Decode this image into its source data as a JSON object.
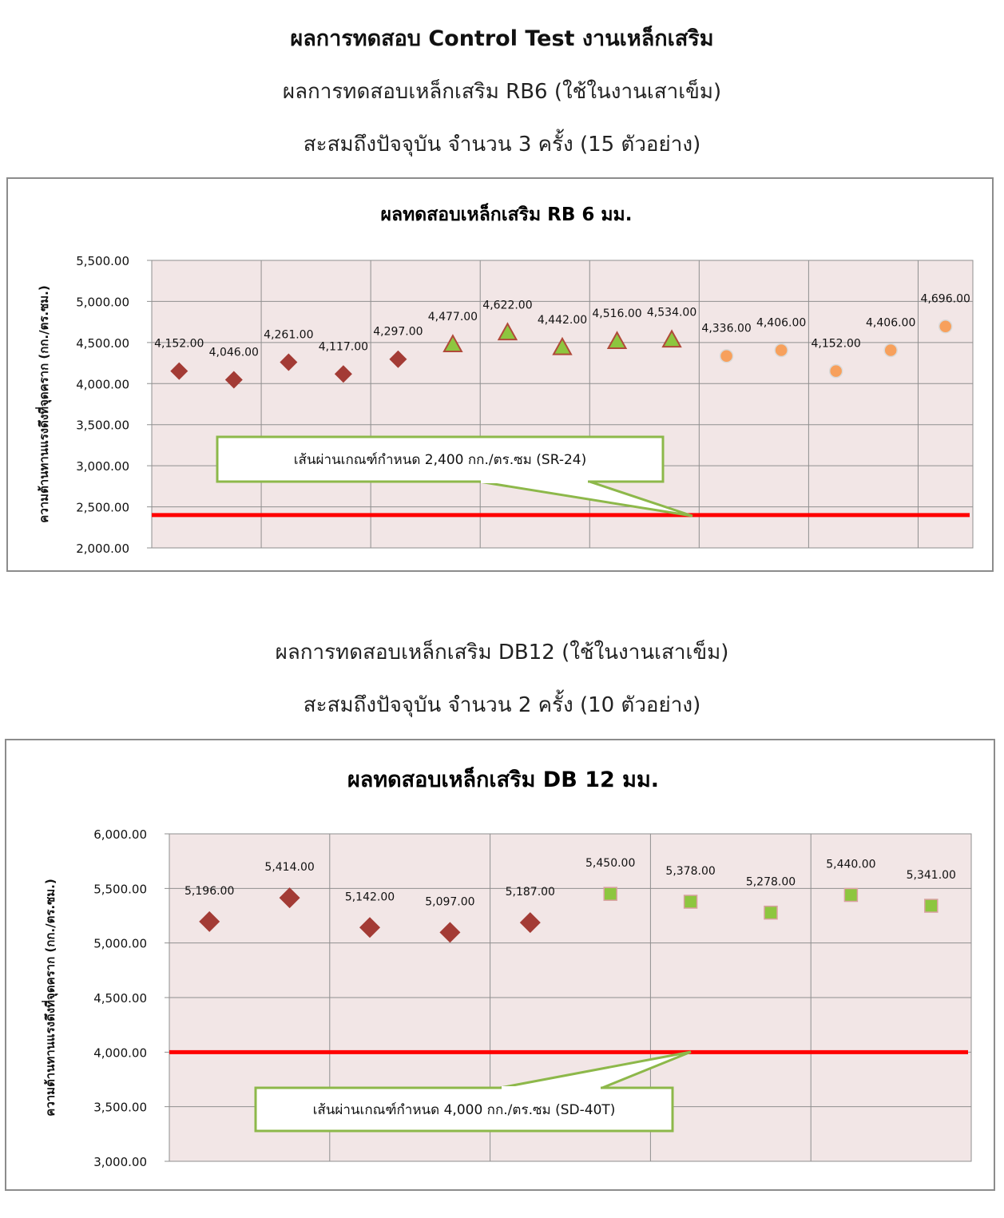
{
  "page": {
    "title": "ผลการทดสอบ Control Test งานเหล็กเสริม",
    "section1_line1": "ผลการทดสอบเหล็กเสริม RB6 (ใช้ในงานเสาเข็ม)",
    "section1_line2": "สะสมถึงปัจจุบัน จำนวน 3 ครั้ง (15 ตัวอย่าง)",
    "section2_line1": "ผลการทดสอบเหล็กเสริม DB12 (ใช้ในงานเสาเข็ม)",
    "section2_line2": "สะสมถึงปัจจุบัน จำนวน 2 ครั้ง (10 ตัวอย่าง)"
  },
  "colors": {
    "plot_bg": "#f2e6e6",
    "grid": "#8f8f8f",
    "threshold": "#ff0000",
    "diamond": "#a33b35",
    "triangle_fill": "#8dc63f",
    "triangle_stroke": "#b04a3a",
    "circle_fill": "#f7a05c",
    "circle_stroke": "#d9d9d9",
    "square_fill": "#8dc63f",
    "square_stroke": "#d9a0a0",
    "callout_border": "#8db84a"
  },
  "chart_data": [
    {
      "type": "scatter",
      "title": "ผลทดสอบเหล็กเสริม RB 6 มม.",
      "ylabel": "ความต้านทานแรงดึงที่จุดคราก (กก./ตร.ซม.)",
      "ylim": [
        2000,
        5500
      ],
      "ytick_step": 500,
      "ytick_labels": [
        "2,000.00",
        "2,500.00",
        "3,000.00",
        "3,500.00",
        "4,000.00",
        "4,500.00",
        "5,000.00",
        "5,500.00"
      ],
      "grid": true,
      "threshold": {
        "value": 2400,
        "label": "เส้นผ่านเกณฑ์กำหนด 2,400 กก./ตร.ซม (SR-24)"
      },
      "series": [
        {
          "marker": "diamond",
          "x": [
            1,
            2,
            3,
            4,
            5
          ],
          "values": [
            4152,
            4046,
            4261,
            4117,
            4297
          ],
          "labels": [
            "4,152.00",
            "4,046.00",
            "4,261.00",
            "4,117.00",
            "4,297.00"
          ]
        },
        {
          "marker": "triangle",
          "x": [
            6,
            7,
            8,
            9,
            10
          ],
          "values": [
            4477,
            4622,
            4442,
            4516,
            4534
          ],
          "labels": [
            "4,477.00",
            "4,622.00",
            "4,442.00",
            "4,516.00",
            "4,534.00"
          ]
        },
        {
          "marker": "circle",
          "x": [
            11,
            12,
            13,
            14,
            15
          ],
          "values": [
            4336,
            4406,
            4152,
            4406,
            4696
          ],
          "labels": [
            "4,336.00",
            "4,406.00",
            "4,152.00",
            "4,406.00",
            "4,696.00"
          ]
        }
      ]
    },
    {
      "type": "scatter",
      "title": "ผลทดสอบเหล็กเสริม DB 12 มม.",
      "ylabel": "ความต้านทานแรงดึงที่จุดคราก (กก./ตร.ซม.)",
      "ylim": [
        3000,
        6000
      ],
      "ytick_step": 500,
      "ytick_labels": [
        "3,000.00",
        "3,500.00",
        "4,000.00",
        "4,500.00",
        "5,000.00",
        "5,500.00",
        "6,000.00"
      ],
      "grid": true,
      "threshold": {
        "value": 4000,
        "label": "เส้นผ่านเกณฑ์กำหนด 4,000 กก./ตร.ซม (SD-40T)"
      },
      "series": [
        {
          "marker": "diamond",
          "x": [
            1,
            2,
            3,
            4,
            5
          ],
          "values": [
            5196,
            5414,
            5142,
            5097,
            5187
          ],
          "labels": [
            "5,196.00",
            "5,414.00",
            "5,142.00",
            "5,097.00",
            "5,187.00"
          ]
        },
        {
          "marker": "square",
          "x": [
            6,
            7,
            8,
            9,
            10
          ],
          "values": [
            5450,
            5378,
            5278,
            5440,
            5341
          ],
          "labels": [
            "5,450.00",
            "5,378.00",
            "5,278.00",
            "5,440.00",
            "5,341.00"
          ]
        }
      ]
    }
  ]
}
